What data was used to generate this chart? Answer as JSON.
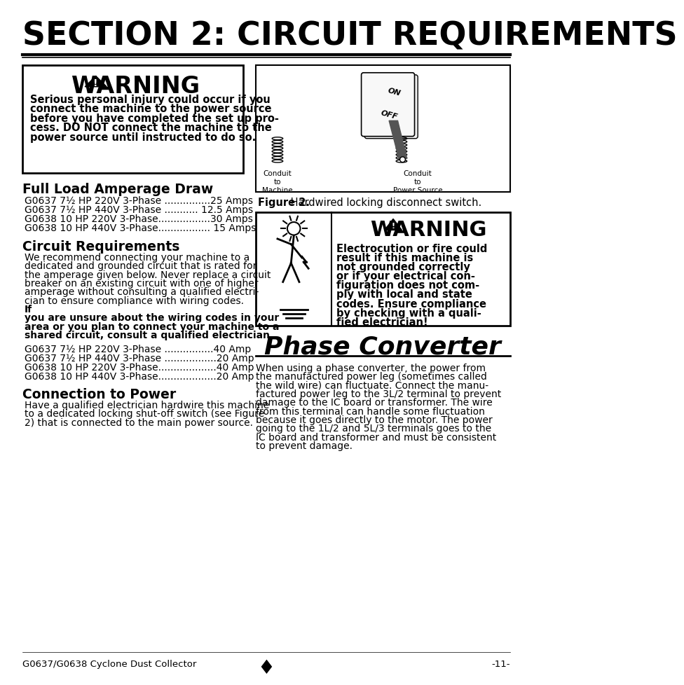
{
  "page_bg": "#ffffff",
  "title": "SECTION 2: CIRCUIT REQUIREMENTS",
  "title_fontsize": 32,
  "warning1_body_lines": [
    "Serious personal injury could occur if you",
    "connect the machine to the power source",
    "before you have completed the set up pro-",
    "cess. DO NOT connect the machine to the",
    "power source until instructed to do so."
  ],
  "full_load_title": "Full Load Amperage Draw",
  "full_load_lines": [
    "G0637 7½ HP 220V 3-Phase ...............25 Amps",
    "G0637 7½ HP 440V 3-Phase ........... 12.5 Amps",
    "G0638 10 HP 220V 3-Phase.................30 Amps",
    "G0638 10 HP 440V 3-Phase................. 15 Amps"
  ],
  "circuit_req_title": "Circuit Requirements",
  "circuit_req_normal_lines": [
    "We recommend connecting your machine to a",
    "dedicated and grounded circuit that is rated for",
    "the amperage given below. Never replace a circuit",
    "breaker on an existing circuit with one of higher",
    "amperage without consulting a qualified electri-",
    "cian to ensure compliance with wiring codes."
  ],
  "circuit_req_bold_lines": [
    "If",
    "you are unsure about the wiring codes in your",
    "area or you plan to connect your machine to a",
    "shared circuit, consult a qualified electrician."
  ],
  "circuit_req_bold_prefix": "If",
  "circuit_req_lines": [
    "G0637 7½ HP 220V 3-Phase ................40 Amp",
    "G0637 7½ HP 440V 3-Phase .................20 Amp",
    "G0638 10 HP 220V 3-Phase...................40 Amp",
    "G0638 10 HP 440V 3-Phase...................20 Amp"
  ],
  "conn_power_title": "Connection to Power",
  "conn_power_lines": [
    "Have a qualified electrician hardwire this machine",
    "to a dedicated locking shut-off switch (see Figure",
    "2) that is connected to the main power source."
  ],
  "conn_power_bold_words": [
    "Figure",
    "2)"
  ],
  "figure2_caption_bold": "Figure 2.",
  "figure2_caption_rest": " Hardwired locking disconnect switch.",
  "warning2_body_lines": [
    "Electrocution or fire could",
    "result if this machine is",
    "not grounded correctly",
    "or if your electrical con-",
    "figuration does not com-",
    "ply with local and state",
    "codes. Ensure compliance",
    "by checking with a quali-",
    "fied electrician!"
  ],
  "phase_converter_title": "Phase Converter",
  "phase_converter_lines": [
    "When using a phase converter, the power from",
    "the manufactured power leg (sometimes called",
    "the wild wire) can fluctuate. Connect the manu-",
    "factured power leg to the 3L/2 terminal to prevent",
    "damage to the IC board or transformer. The wire",
    "from this terminal can handle some fluctuation",
    "because it goes directly to the motor. The power",
    "going to the 1L/2 and 5L/3 terminals goes to the",
    "IC board and transformer and must be consistent",
    "to prevent damage."
  ],
  "phase_bold_terms": [
    "3L/2",
    "1L/2",
    "5L/3"
  ],
  "footer_left": "G0637/G0638 Cyclone Dust Collector",
  "footer_right": "-11-"
}
